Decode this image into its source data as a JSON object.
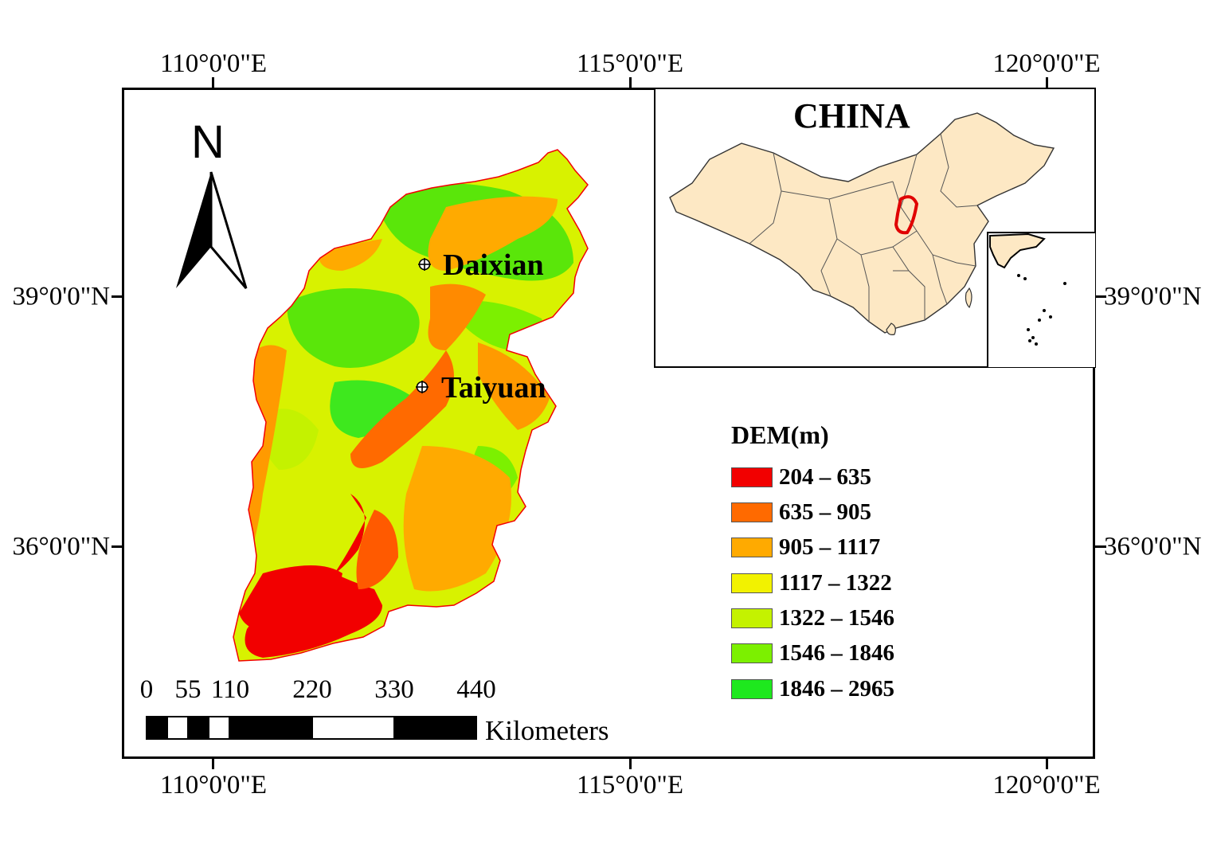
{
  "coordinates": {
    "lon_labels": [
      "110°0'0\"E",
      "115°0'0\"E",
      "120°0'0\"E"
    ],
    "lat_labels": [
      "39°0'0\"N",
      "36°0'0\"N"
    ]
  },
  "north_arrow": {
    "letter": "N",
    "icon": "north-arrow-icon"
  },
  "cities": [
    {
      "name": "Daixian",
      "icon": "city-marker-icon"
    },
    {
      "name": "Taiyuan",
      "icon": "city-marker-icon"
    }
  ],
  "inset": {
    "title": "CHINA",
    "highlight_color": "#e00000",
    "land_color": "#fde8c4"
  },
  "legend": {
    "title": "DEM(m)",
    "classes": [
      {
        "label": "204 – 635",
        "color": "#f20000"
      },
      {
        "label": "635 – 905",
        "color": "#ff6a00"
      },
      {
        "label": "905 – 1117",
        "color": "#ffaa00"
      },
      {
        "label": "1117 – 1322",
        "color": "#f2f200"
      },
      {
        "label": "1322 – 1546",
        "color": "#c4f200"
      },
      {
        "label": "1546 – 1846",
        "color": "#7cf000"
      },
      {
        "label": "1846 – 2965",
        "color": "#1ee81e"
      }
    ]
  },
  "scale_bar": {
    "ticks": [
      "0",
      "55",
      "110",
      "220",
      "330",
      "440"
    ],
    "unit": "Kilometers"
  }
}
